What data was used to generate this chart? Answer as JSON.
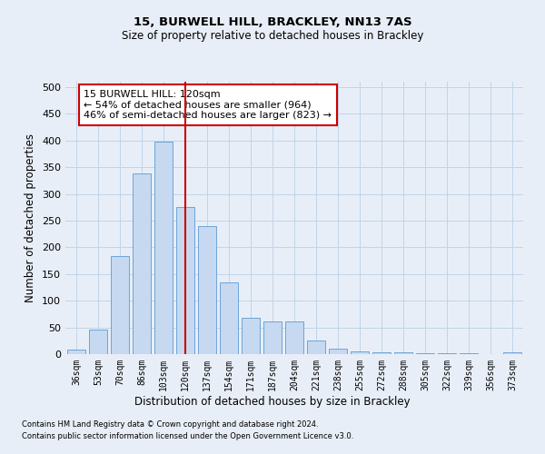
{
  "title1": "15, BURWELL HILL, BRACKLEY, NN13 7AS",
  "title2": "Size of property relative to detached houses in Brackley",
  "xlabel": "Distribution of detached houses by size in Brackley",
  "ylabel": "Number of detached properties",
  "footnote1": "Contains HM Land Registry data © Crown copyright and database right 2024.",
  "footnote2": "Contains public sector information licensed under the Open Government Licence v3.0.",
  "bins": [
    "36sqm",
    "53sqm",
    "70sqm",
    "86sqm",
    "103sqm",
    "120sqm",
    "137sqm",
    "154sqm",
    "171sqm",
    "187sqm",
    "204sqm",
    "221sqm",
    "238sqm",
    "255sqm",
    "272sqm",
    "288sqm",
    "305sqm",
    "322sqm",
    "339sqm",
    "356sqm",
    "373sqm"
  ],
  "values": [
    8,
    46,
    184,
    338,
    397,
    275,
    240,
    135,
    68,
    62,
    62,
    25,
    10,
    5,
    4,
    3,
    2,
    1,
    1,
    0,
    4
  ],
  "bar_color": "#c6d9f0",
  "bar_edge_color": "#5b9bd5",
  "grid_color": "#c0d4e8",
  "property_line_x": 5,
  "annotation_text": "15 BURWELL HILL: 120sqm\n← 54% of detached houses are smaller (964)\n46% of semi-detached houses are larger (823) →",
  "annotation_box_color": "#ffffff",
  "annotation_box_edge": "#cc0000",
  "vline_color": "#cc0000",
  "ylim": [
    0,
    510
  ],
  "yticks": [
    0,
    50,
    100,
    150,
    200,
    250,
    300,
    350,
    400,
    450,
    500
  ],
  "background_color": "#e8eef7"
}
